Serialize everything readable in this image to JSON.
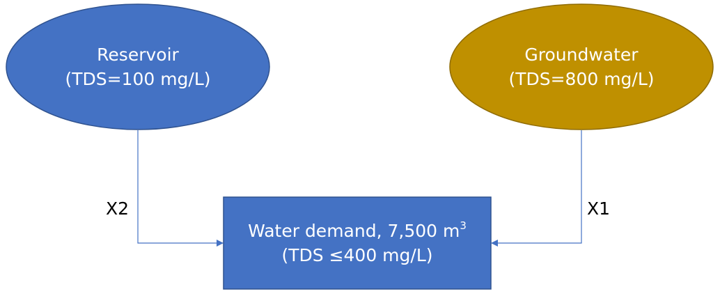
{
  "colors": {
    "reservoir_fill": "#4472C4",
    "groundwater_fill": "#BF9000",
    "demand_fill": "#4472C4",
    "node_text": "#FFFFFF",
    "connector": "#4472C4",
    "label_text": "#000000"
  },
  "reservoir": {
    "name": "Reservoir",
    "tds": "(TDS=100 mg/L)"
  },
  "groundwater": {
    "name": "Groundwater",
    "tds": "(TDS=800 mg/L)"
  },
  "demand": {
    "title": "Water demand, 7,500 m",
    "unit_exponent": "3",
    "constraint": "(TDS ≤400 mg/L)"
  },
  "flows": {
    "reservoir_flow": "X2",
    "groundwater_flow": "X1"
  }
}
